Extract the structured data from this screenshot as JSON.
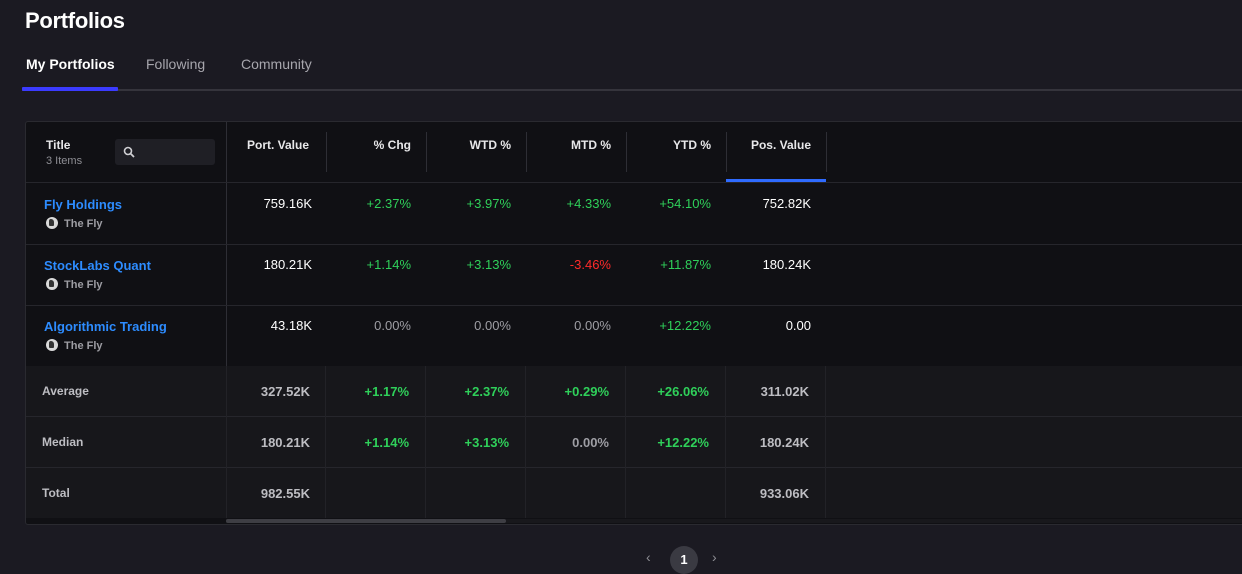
{
  "page": {
    "title": "Portfolios"
  },
  "tabs": [
    {
      "label": "My Portfolios",
      "active": true
    },
    {
      "label": "Following",
      "active": false
    },
    {
      "label": "Community",
      "active": false
    }
  ],
  "table": {
    "title_header": "Title",
    "item_count": "3 Items",
    "columns": [
      "Port. Value",
      "% Chg",
      "WTD %",
      "MTD %",
      "YTD %",
      "Pos. Value"
    ],
    "sorted_column": "Pos. Value",
    "rows": [
      {
        "name": "Fly Holdings",
        "owner": "The Fly",
        "port_value": "759.16K",
        "chg": "+2.37%",
        "wtd": "+3.97%",
        "mtd": "+4.33%",
        "ytd": "+54.10%",
        "pos_value": "752.82K"
      },
      {
        "name": "StockLabs Quant",
        "owner": "The Fly",
        "port_value": "180.21K",
        "chg": "+1.14%",
        "wtd": "+3.13%",
        "mtd": "-3.46%",
        "ytd": "+11.87%",
        "pos_value": "180.24K"
      },
      {
        "name": "Algorithmic Trading",
        "owner": "The Fly",
        "port_value": "43.18K",
        "chg": "0.00%",
        "wtd": "0.00%",
        "mtd": "0.00%",
        "ytd": "+12.22%",
        "pos_value": "0.00"
      }
    ],
    "summary": [
      {
        "label": "Average",
        "port_value": "327.52K",
        "chg": "+1.17%",
        "wtd": "+2.37%",
        "mtd": "+0.29%",
        "ytd": "+26.06%",
        "pos_value": "311.02K"
      },
      {
        "label": "Median",
        "port_value": "180.21K",
        "chg": "+1.14%",
        "wtd": "+3.13%",
        "mtd": "0.00%",
        "ytd": "+12.22%",
        "pos_value": "180.24K"
      },
      {
        "label": "Total",
        "port_value": "982.55K",
        "chg": "",
        "wtd": "",
        "mtd": "",
        "ytd": "",
        "pos_value": "933.06K"
      }
    ]
  },
  "pagination": {
    "current_page": "1",
    "prev": "‹",
    "next": "›"
  },
  "colors": {
    "positive": "#2fd05a",
    "negative": "#ff2a2a",
    "link": "#2d8cff",
    "accent": "#3b3bff"
  },
  "icons": {
    "search": "search-icon",
    "avatar": "avatar"
  }
}
